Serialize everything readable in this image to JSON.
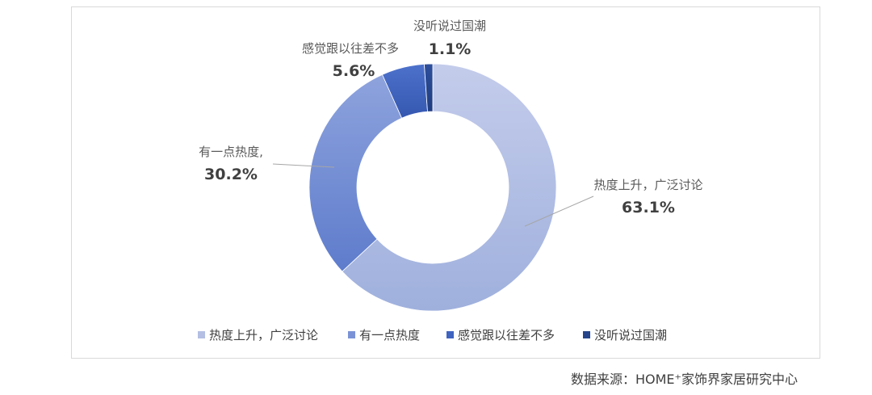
{
  "chart_data": {
    "type": "pie",
    "style": "donut",
    "categories": [
      "热度上升，广泛讨论",
      "有一点热度",
      "感觉跟以往差不多",
      "没听说过国潮"
    ],
    "values": [
      63.1,
      30.2,
      5.6,
      1.1
    ],
    "value_labels": [
      "63.1%",
      "30.2%",
      "5.6%",
      "1.1%"
    ],
    "data_labels": [
      "热度上升，广泛讨论",
      "有一点热度,",
      "感觉跟以往差不多",
      "没听说过国潮"
    ],
    "colors": [
      "#b4bfe3",
      "#7b93d6",
      "#3f64c0",
      "#25448a"
    ],
    "legend_position": "bottom"
  },
  "source": "数据来源：HOME⁺家饰界家居研究中心"
}
